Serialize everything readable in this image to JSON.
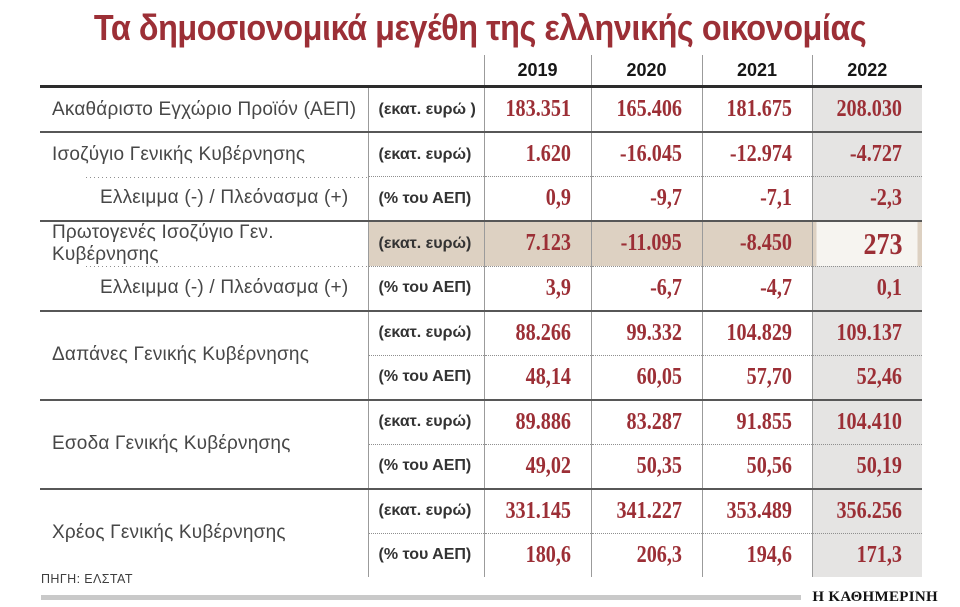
{
  "title": "Τα δημοσιονομικά μεγέθη της ελληνικής οικονομίας",
  "source": "ΠΗΓΗ: ΕΛΣΤΑΤ",
  "brand": "Η ΚΑΘΗΜΕΡΙΝΗ",
  "colors": {
    "accent_red": "#9c2f36",
    "highlight_beige": "#ddd1c2",
    "column_2022_gray": "#e5e4e3",
    "highlight_2022_cell": "#f6f4f0",
    "rule_dark": "#2c2c2c",
    "footer_bar_gray": "#c9c9c9"
  },
  "chart_data": {
    "type": "table",
    "title": "Τα δημοσιονομικά μεγέθη της ελληνικής οικονομίας",
    "columns": [
      "2019",
      "2020",
      "2021",
      "2022"
    ],
    "highlighted_row_index": 3,
    "highlighted_column": "2022",
    "rows": [
      {
        "label": "Ακαθάριστο Εγχώριο Προϊόν (ΑΕΠ)",
        "unit": "(εκατ. ευρώ )",
        "values": [
          "183.351",
          "165.406",
          "181.675",
          "208.030"
        ]
      },
      {
        "label": "Ισοζύγιο Γενικής Κυβέρνησης",
        "unit": "(εκατ. ευρώ)",
        "values": [
          "1.620",
          "-16.045",
          "-12.974",
          "-4.727"
        ]
      },
      {
        "label": "Ελλειμμα (-) / Πλεόνασμα (+)",
        "unit": "(% του ΑΕΠ)",
        "values": [
          "0,9",
          "-9,7",
          "-7,1",
          "-2,3"
        ]
      },
      {
        "label": "Πρωτογενές Ισοζύγιο Γεν. Κυβέρνησης",
        "unit": "(εκατ. ευρώ)",
        "values": [
          "7.123",
          "-11.095",
          "-8.450",
          "273"
        ]
      },
      {
        "label": "Ελλειμμα (-) / Πλεόνασμα (+)",
        "unit": "(% του ΑΕΠ)",
        "values": [
          "3,9",
          "-6,7",
          "-4,7",
          "0,1"
        ]
      },
      {
        "label": "Δαπάνες Γενικής Κυβέρνησης",
        "unit": "(εκατ. ευρώ)",
        "values": [
          "88.266",
          "99.332",
          "104.829",
          "109.137"
        ]
      },
      {
        "label": "",
        "unit": "(% του ΑΕΠ)",
        "values": [
          "48,14",
          "60,05",
          "57,70",
          "52,46"
        ]
      },
      {
        "label": "Εσοδα Γενικής Κυβέρνησης",
        "unit": "(εκατ. ευρώ)",
        "values": [
          "89.886",
          "83.287",
          "91.855",
          "104.410"
        ]
      },
      {
        "label": "",
        "unit": "(% του ΑΕΠ)",
        "values": [
          "49,02",
          "50,35",
          "50,56",
          "50,19"
        ]
      },
      {
        "label": "Χρέος Γενικής Κυβέρνησης",
        "unit": "(εκατ. ευρώ)",
        "values": [
          "331.145",
          "341.227",
          "353.489",
          "356.256"
        ]
      },
      {
        "label": "",
        "unit": "(% του ΑΕΠ)",
        "values": [
          "180,6",
          "206,3",
          "194,6",
          "171,3"
        ]
      }
    ],
    "source": "ΠΗΓΗ: ΕΛΣΤΑΤ"
  }
}
